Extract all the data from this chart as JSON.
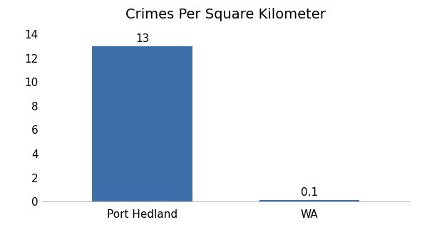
{
  "categories": [
    "Port Hedland",
    "WA"
  ],
  "values": [
    13,
    0.1
  ],
  "bar_colors": [
    "#3d6faa",
    "#3d6faa"
  ],
  "title": "Crimes Per Square Kilometer",
  "title_fontsize": 14,
  "label_fontsize": 11,
  "tick_fontsize": 11,
  "ylim": [
    0,
    14.5
  ],
  "yticks": [
    0,
    2,
    4,
    6,
    8,
    10,
    12,
    14
  ],
  "bar_width": 0.6,
  "background_color": "#ffffff",
  "value_labels": [
    "13",
    "0.1"
  ],
  "x_positions": [
    0,
    1
  ]
}
